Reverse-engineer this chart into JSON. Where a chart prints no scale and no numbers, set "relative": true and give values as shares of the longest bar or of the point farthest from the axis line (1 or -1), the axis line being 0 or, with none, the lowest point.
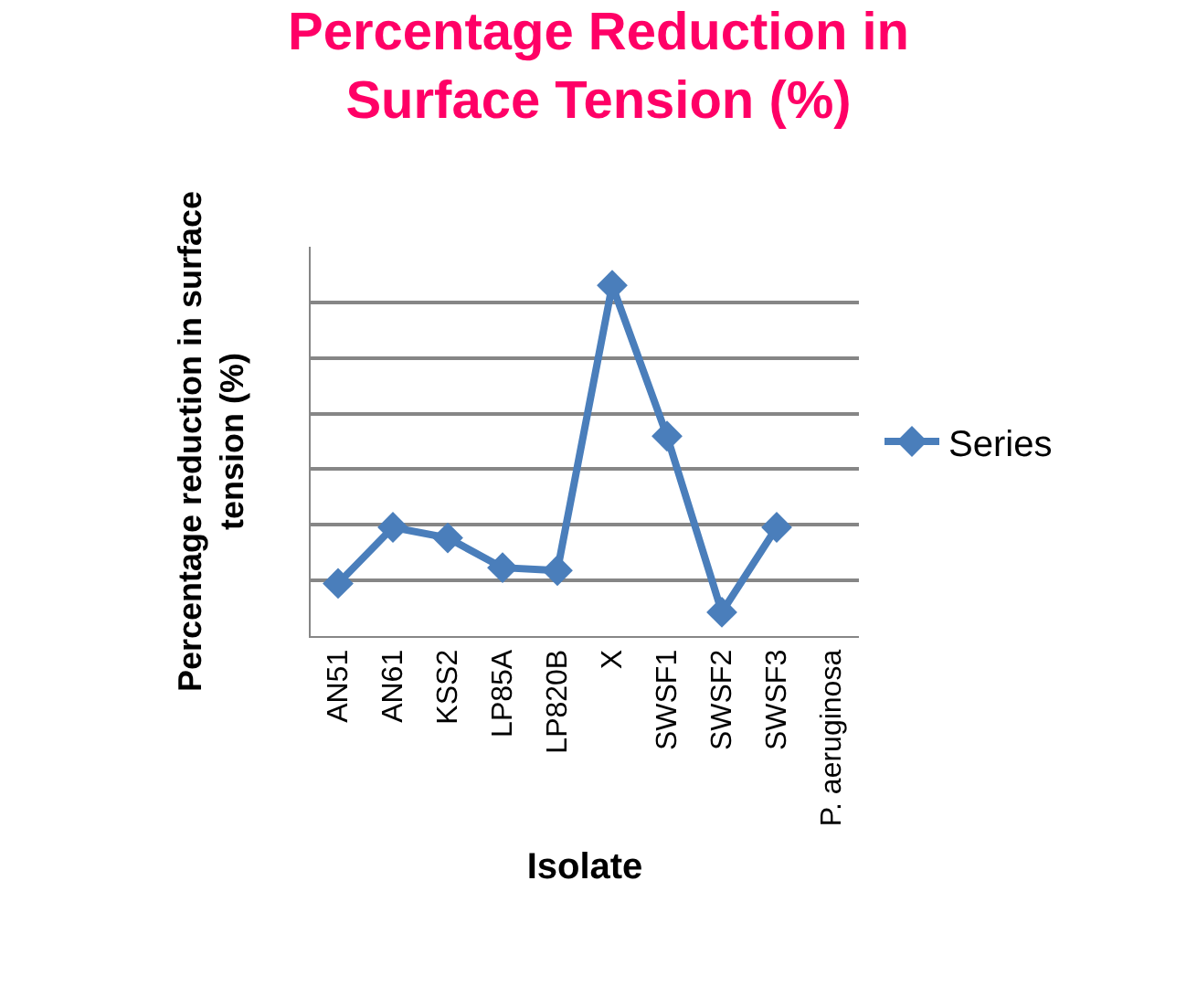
{
  "chart_data": {
    "type": "line",
    "title": "Percentage Reduction in\nSurface Tension (%)",
    "xlabel": "Isolate",
    "ylabel": "Percentage reduction in surface\ntension (%)",
    "relative": true,
    "categories": [
      "AN51",
      "AN61",
      "KSS2",
      "LP85A",
      "LP820B",
      "X",
      "SWSF1",
      "SWSF2",
      "SWSF3",
      "P. aeruginosa"
    ],
    "series": [
      {
        "name": "Series",
        "color": "#4a7ebb",
        "values": [
          0.15,
          0.31,
          0.28,
          0.195,
          0.187,
          1,
          0.57,
          0.068,
          0.31,
          null
        ]
      }
    ],
    "marker": "diamond",
    "line_style": "solid",
    "grid": "y",
    "legend": "right"
  }
}
